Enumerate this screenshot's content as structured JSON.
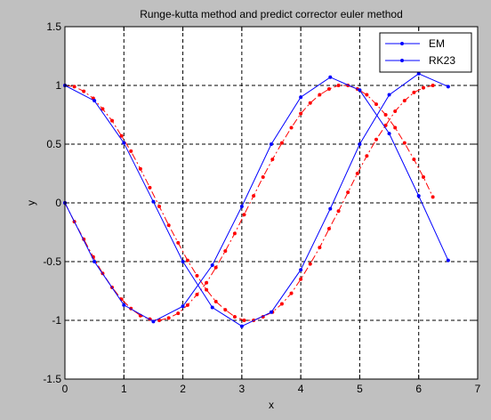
{
  "chart_data": {
    "type": "line",
    "title": "Runge-kutta method and predict corrector euler method",
    "xlabel": "x",
    "ylabel": "y",
    "xlim": [
      0,
      7
    ],
    "ylim": [
      -1.5,
      1.5
    ],
    "xticks": [
      0,
      1,
      2,
      3,
      4,
      5,
      6,
      7
    ],
    "xtick_labels": [
      "0",
      "1",
      "2",
      "3",
      "4",
      "5",
      "6",
      "7"
    ],
    "yticks": [
      -1.5,
      -1,
      -0.5,
      0,
      0.5,
      1,
      1.5
    ],
    "ytick_labels": [
      "-1.5",
      "-1",
      "-0.5",
      "0",
      "0.5",
      "1",
      "1.5"
    ],
    "grid": true,
    "legend_position": "top-right",
    "series": [
      {
        "name": "EM",
        "color": "#0000ff",
        "linestyle": "solid",
        "marker": "dot",
        "in_legend": true,
        "x": [
          0,
          0.5,
          1,
          1.5,
          2,
          2.5,
          3,
          3.5,
          4,
          4.5,
          5,
          5.5,
          6,
          6.5
        ],
        "y": [
          0,
          -0.5,
          -0.87,
          -1.01,
          -0.88,
          -0.53,
          -0.03,
          0.5,
          0.9,
          1.07,
          0.96,
          0.59,
          0.06,
          -0.49
        ]
      },
      {
        "name": "RK23",
        "color": "#0000ff",
        "linestyle": "solid",
        "marker": "dot",
        "in_legend": true,
        "x": [
          0,
          0.5,
          1,
          1.5,
          2,
          2.5,
          3,
          3.5,
          4,
          4.5,
          5,
          5.5,
          6,
          6.5
        ],
        "y": [
          1,
          0.87,
          0.51,
          0.01,
          -0.5,
          -0.89,
          -1.05,
          -0.93,
          -0.57,
          -0.05,
          0.5,
          0.92,
          1.1,
          0.99
        ]
      },
      {
        "name": "",
        "color": "#ff0000",
        "linestyle": "dashdot",
        "marker": "dot",
        "in_legend": false,
        "x": [
          0,
          0.16,
          0.32,
          0.48,
          0.64,
          0.8,
          0.96,
          1.12,
          1.28,
          1.44,
          1.6,
          1.76,
          1.92,
          2.08,
          2.24,
          2.4,
          2.56,
          2.72,
          2.88,
          3.04,
          3.2,
          3.36,
          3.52,
          3.68,
          3.84,
          4,
          4.16,
          4.32,
          4.48,
          4.64,
          4.8,
          4.96,
          5.12,
          5.28,
          5.44,
          5.6,
          5.76,
          5.92,
          6.08,
          6.24
        ],
        "y": [
          0,
          -0.16,
          -0.31,
          -0.46,
          -0.6,
          -0.72,
          -0.82,
          -0.9,
          -0.96,
          -0.99,
          -1.0,
          -0.98,
          -0.94,
          -0.87,
          -0.78,
          -0.68,
          -0.55,
          -0.41,
          -0.26,
          -0.1,
          0.06,
          0.22,
          0.37,
          0.51,
          0.64,
          0.76,
          0.85,
          0.92,
          0.97,
          1.0,
          1.0,
          0.97,
          0.92,
          0.84,
          0.75,
          0.64,
          0.51,
          0.37,
          0.22,
          0.05
        ]
      },
      {
        "name": "",
        "color": "#ff0000",
        "linestyle": "dashdot",
        "marker": "dot",
        "in_legend": false,
        "x": [
          0,
          0.16,
          0.32,
          0.48,
          0.64,
          0.8,
          0.96,
          1.12,
          1.28,
          1.44,
          1.6,
          1.76,
          1.92,
          2.08,
          2.24,
          2.4,
          2.56,
          2.72,
          2.88,
          3.04,
          3.2,
          3.36,
          3.52,
          3.68,
          3.84,
          4,
          4.16,
          4.32,
          4.48,
          4.64,
          4.8,
          4.96,
          5.12,
          5.28,
          5.44,
          5.6,
          5.76,
          5.92,
          6.08,
          6.24
        ],
        "y": [
          1.0,
          0.99,
          0.95,
          0.89,
          0.8,
          0.7,
          0.57,
          0.44,
          0.29,
          0.13,
          -0.03,
          -0.19,
          -0.34,
          -0.49,
          -0.62,
          -0.74,
          -0.84,
          -0.91,
          -0.97,
          -1.0,
          -1.0,
          -0.97,
          -0.93,
          -0.86,
          -0.77,
          -0.65,
          -0.52,
          -0.38,
          -0.22,
          -0.07,
          0.09,
          0.25,
          0.4,
          0.54,
          0.66,
          0.78,
          0.87,
          0.94,
          0.98,
          1.0
        ]
      }
    ]
  }
}
